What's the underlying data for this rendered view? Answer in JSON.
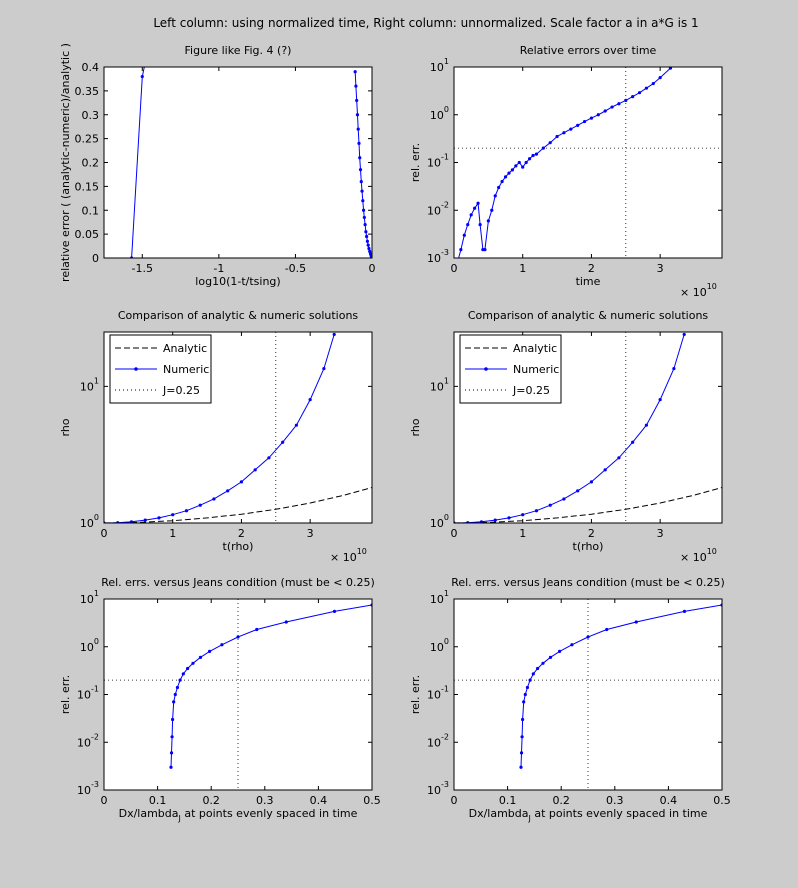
{
  "suptitle": "Left column: using normalized time, Right column: unnormalized. Scale factor a in a*G is 1",
  "chart_data": [
    {
      "type": "line",
      "title": "Figure like Fig. 4 (?)",
      "xlabel": "log10(1-t/tsing)",
      "ylabel": "relative error ( (analytic-numeric)/analytic )",
      "xlim": [
        -1.75,
        0
      ],
      "ylim": [
        0,
        0.4
      ],
      "xscale": "linear",
      "yscale": "linear",
      "xticks": [
        -1.5,
        -1,
        -0.5,
        0
      ],
      "xticklabels": [
        "-1.5",
        "-1",
        "-0.5",
        "0"
      ],
      "yticks": [
        0,
        0.05,
        0.1,
        0.15,
        0.2,
        0.25,
        0.3,
        0.35,
        0.4
      ],
      "yticklabels": [
        "0",
        "0.05",
        "0.1",
        "0.15",
        "0.2",
        "0.25",
        "0.3",
        "0.35",
        "0.4"
      ],
      "series": [
        {
          "color": "#0000ff",
          "linestyle": "solid",
          "marker": "dot",
          "x": [
            -0.11,
            -0.105,
            -0.1,
            -0.095,
            -0.09,
            -0.085,
            -0.08,
            -0.075,
            -0.07,
            -0.065,
            -0.06,
            -0.055,
            -0.05,
            -0.045,
            -0.04,
            -0.035,
            -0.03,
            -0.025,
            -0.02,
            -0.015,
            -0.01,
            -0.006,
            -0.003,
            -0.001
          ],
          "y": [
            0.39,
            0.36,
            0.33,
            0.3,
            0.27,
            0.24,
            0.21,
            0.185,
            0.16,
            0.14,
            0.12,
            0.1,
            0.085,
            0.07,
            0.055,
            0.045,
            0.035,
            0.027,
            0.02,
            0.014,
            0.009,
            0.005,
            0.002,
            0.0
          ]
        },
        {
          "color": "#0000ff",
          "linestyle": "solid",
          "marker": "dot",
          "x": [
            -1.57,
            -1.5,
            -1.48
          ],
          "y": [
            0.0,
            0.38,
            0.41
          ]
        }
      ]
    },
    {
      "type": "line",
      "title": "Relative errors over time",
      "xlabel": "time",
      "ylabel": "rel. err.",
      "xlim": [
        0,
        39000000000.0
      ],
      "ylim": [
        0.001,
        10
      ],
      "xscale": "linear",
      "yscale": "log",
      "x_exponent": "× 10^10",
      "xticks": [
        0,
        10000000000.0,
        20000000000.0,
        30000000000.0
      ],
      "xticklabels": [
        "0",
        "1",
        "2",
        "3"
      ],
      "yticks": [
        0.001,
        0.01,
        0.1,
        1,
        10
      ],
      "yticklabels": [
        "10^-3",
        "10^-2",
        "10^-1",
        "10^0",
        "10^1"
      ],
      "hlines": [
        0.2
      ],
      "vlines": [
        25000000000.0
      ],
      "series": [
        {
          "color": "#0000ff",
          "linestyle": "solid",
          "marker": "dot",
          "x": [
            500000000.0,
            1000000000.0,
            1500000000.0,
            2000000000.0,
            2500000000.0,
            3000000000.0,
            3500000000.0,
            3800000000.0,
            4200000000.0,
            4500000000.0,
            5000000000.0,
            5500000000.0,
            6000000000.0,
            6500000000.0,
            7000000000.0,
            7500000000.0,
            8000000000.0,
            8500000000.0,
            9000000000.0,
            9500000000.0,
            10000000000.0,
            10500000000.0,
            11000000000.0,
            11500000000.0,
            12000000000.0,
            13000000000.0,
            14000000000.0,
            15000000000.0,
            16000000000.0,
            17000000000.0,
            18000000000.0,
            19000000000.0,
            20000000000.0,
            21000000000.0,
            22000000000.0,
            23000000000.0,
            24000000000.0,
            25000000000.0,
            26000000000.0,
            27000000000.0,
            28000000000.0,
            29000000000.0,
            30000000000.0,
            31500000000.0
          ],
          "y": [
            0.0008,
            0.0015,
            0.003,
            0.005,
            0.008,
            0.011,
            0.014,
            0.005,
            0.0015,
            0.0015,
            0.006,
            0.01,
            0.02,
            0.03,
            0.04,
            0.05,
            0.06,
            0.07,
            0.085,
            0.1,
            0.08,
            0.1,
            0.12,
            0.14,
            0.15,
            0.2,
            0.26,
            0.35,
            0.42,
            0.5,
            0.6,
            0.72,
            0.85,
            1.0,
            1.2,
            1.45,
            1.7,
            2.0,
            2.4,
            2.9,
            3.6,
            4.5,
            6.0,
            9.5
          ]
        }
      ]
    },
    {
      "type": "line",
      "title": "Comparison of analytic & numeric solutions",
      "xlabel": "t(rho)",
      "ylabel": "rho",
      "xlim": [
        0,
        39000000000.0
      ],
      "ylim": [
        1,
        25
      ],
      "xscale": "linear",
      "yscale": "log",
      "x_exponent": "× 10^10",
      "xticks": [
        0,
        10000000000.0,
        20000000000.0,
        30000000000.0
      ],
      "xticklabels": [
        "0",
        "1",
        "2",
        "3"
      ],
      "yticks": [
        1,
        10
      ],
      "yticklabels": [
        "10^0",
        "10^1"
      ],
      "vlines": [
        25000000000.0
      ],
      "legend": {
        "position": "top-left",
        "entries": [
          {
            "label": "Analytic",
            "style": "dashed"
          },
          {
            "label": "Numeric",
            "style": "solid-dot"
          },
          {
            "label": "J=0.25",
            "style": "dotted"
          }
        ]
      },
      "series": [
        {
          "name": "Analytic",
          "color": "#000000",
          "linestyle": "dashed",
          "x": [
            0,
            5000000000.0,
            10000000000.0,
            15000000000.0,
            20000000000.0,
            25000000000.0,
            30000000000.0,
            35000000000.0,
            39000000000.0
          ],
          "y": [
            1.0,
            1.01,
            1.04,
            1.09,
            1.16,
            1.26,
            1.4,
            1.6,
            1.82
          ]
        },
        {
          "name": "Numeric",
          "color": "#0000ff",
          "linestyle": "solid",
          "marker": "dot",
          "x": [
            0,
            2000000000.0,
            4000000000.0,
            6000000000.0,
            8000000000.0,
            10000000000.0,
            12000000000.0,
            14000000000.0,
            16000000000.0,
            18000000000.0,
            20000000000.0,
            22000000000.0,
            24000000000.0,
            26000000000.0,
            28000000000.0,
            30000000000.0,
            32000000000.0,
            33500000000.0
          ],
          "y": [
            1.0,
            1.005,
            1.02,
            1.05,
            1.09,
            1.15,
            1.23,
            1.35,
            1.5,
            1.72,
            2.0,
            2.45,
            3.0,
            3.9,
            5.2,
            8.0,
            13.5,
            24.0
          ]
        },
        {
          "name": "J=0.25",
          "color": "#000000",
          "linestyle": "dotted",
          "vline_x": 25000000000.0
        }
      ]
    },
    {
      "type": "line",
      "title": "Comparison of analytic & numeric solutions",
      "xlabel": "t(rho)",
      "ylabel": "rho",
      "xlim": [
        0,
        39000000000.0
      ],
      "ylim": [
        1,
        25
      ],
      "xscale": "linear",
      "yscale": "log",
      "x_exponent": "× 10^10",
      "xticks": [
        0,
        10000000000.0,
        20000000000.0,
        30000000000.0
      ],
      "xticklabels": [
        "0",
        "1",
        "2",
        "3"
      ],
      "yticks": [
        1,
        10
      ],
      "yticklabels": [
        "10^0",
        "10^1"
      ],
      "vlines": [
        25000000000.0
      ],
      "legend": {
        "position": "top-left",
        "entries": [
          {
            "label": "Analytic",
            "style": "dashed"
          },
          {
            "label": "Numeric",
            "style": "solid-dot"
          },
          {
            "label": "J=0.25",
            "style": "dotted"
          }
        ]
      },
      "series": [
        {
          "name": "Analytic",
          "color": "#000000",
          "linestyle": "dashed",
          "x": [
            0,
            5000000000.0,
            10000000000.0,
            15000000000.0,
            20000000000.0,
            25000000000.0,
            30000000000.0,
            35000000000.0,
            39000000000.0
          ],
          "y": [
            1.0,
            1.01,
            1.04,
            1.09,
            1.16,
            1.26,
            1.4,
            1.6,
            1.82
          ]
        },
        {
          "name": "Numeric",
          "color": "#0000ff",
          "linestyle": "solid",
          "marker": "dot",
          "x": [
            0,
            2000000000.0,
            4000000000.0,
            6000000000.0,
            8000000000.0,
            10000000000.0,
            12000000000.0,
            14000000000.0,
            16000000000.0,
            18000000000.0,
            20000000000.0,
            22000000000.0,
            24000000000.0,
            26000000000.0,
            28000000000.0,
            30000000000.0,
            32000000000.0,
            33500000000.0
          ],
          "y": [
            1.0,
            1.005,
            1.02,
            1.05,
            1.09,
            1.15,
            1.23,
            1.35,
            1.5,
            1.72,
            2.0,
            2.45,
            3.0,
            3.9,
            5.2,
            8.0,
            13.5,
            24.0
          ]
        },
        {
          "name": "J=0.25",
          "color": "#000000",
          "linestyle": "dotted",
          "vline_x": 25000000000.0
        }
      ]
    },
    {
      "type": "line",
      "title": "Rel. errs. versus Jeans condition (must be < 0.25)",
      "xlabel": "Dx/lambda_J at points evenly spaced in time",
      "ylabel": "rel. err.",
      "xlim": [
        0,
        0.5
      ],
      "ylim": [
        0.001,
        10
      ],
      "xscale": "linear",
      "yscale": "log",
      "xticks": [
        0,
        0.1,
        0.2,
        0.3,
        0.4,
        0.5
      ],
      "xticklabels": [
        "0",
        "0.1",
        "0.2",
        "0.3",
        "0.4",
        "0.5"
      ],
      "yticks": [
        0.001,
        0.01,
        0.1,
        1,
        10
      ],
      "yticklabels": [
        "10^-3",
        "10^-2",
        "10^-1",
        "10^0",
        "10^1"
      ],
      "hlines": [
        0.2
      ],
      "vlines": [
        0.25
      ],
      "series": [
        {
          "color": "#0000ff",
          "linestyle": "solid",
          "marker": "dot",
          "x": [
            0.125,
            0.126,
            0.127,
            0.128,
            0.13,
            0.133,
            0.137,
            0.142,
            0.148,
            0.156,
            0.166,
            0.18,
            0.197,
            0.22,
            0.25,
            0.285,
            0.34,
            0.43,
            0.5
          ],
          "y": [
            0.003,
            0.006,
            0.013,
            0.03,
            0.07,
            0.1,
            0.14,
            0.2,
            0.27,
            0.35,
            0.45,
            0.6,
            0.8,
            1.1,
            1.6,
            2.3,
            3.3,
            5.5,
            7.5
          ]
        }
      ]
    },
    {
      "type": "line",
      "title": "Rel. errs. versus Jeans condition (must be < 0.25)",
      "xlabel": "Dx/lambda_J at points evenly spaced in time",
      "ylabel": "rel. err.",
      "xlim": [
        0,
        0.5
      ],
      "ylim": [
        0.001,
        10
      ],
      "xscale": "linear",
      "yscale": "log",
      "xticks": [
        0,
        0.1,
        0.2,
        0.3,
        0.4,
        0.5
      ],
      "xticklabels": [
        "0",
        "0.1",
        "0.2",
        "0.3",
        "0.4",
        "0.5"
      ],
      "yticks": [
        0.001,
        0.01,
        0.1,
        1,
        10
      ],
      "yticklabels": [
        "10^-3",
        "10^-2",
        "10^-1",
        "10^0",
        "10^1"
      ],
      "hlines": [
        0.2
      ],
      "vlines": [
        0.25
      ],
      "series": [
        {
          "color": "#0000ff",
          "linestyle": "solid",
          "marker": "dot",
          "x": [
            0.125,
            0.126,
            0.127,
            0.128,
            0.13,
            0.133,
            0.137,
            0.142,
            0.148,
            0.156,
            0.166,
            0.18,
            0.197,
            0.22,
            0.25,
            0.285,
            0.34,
            0.43,
            0.5
          ],
          "y": [
            0.003,
            0.006,
            0.013,
            0.03,
            0.07,
            0.1,
            0.14,
            0.2,
            0.27,
            0.35,
            0.45,
            0.6,
            0.8,
            1.1,
            1.6,
            2.3,
            3.3,
            5.5,
            7.5
          ]
        }
      ]
    }
  ]
}
